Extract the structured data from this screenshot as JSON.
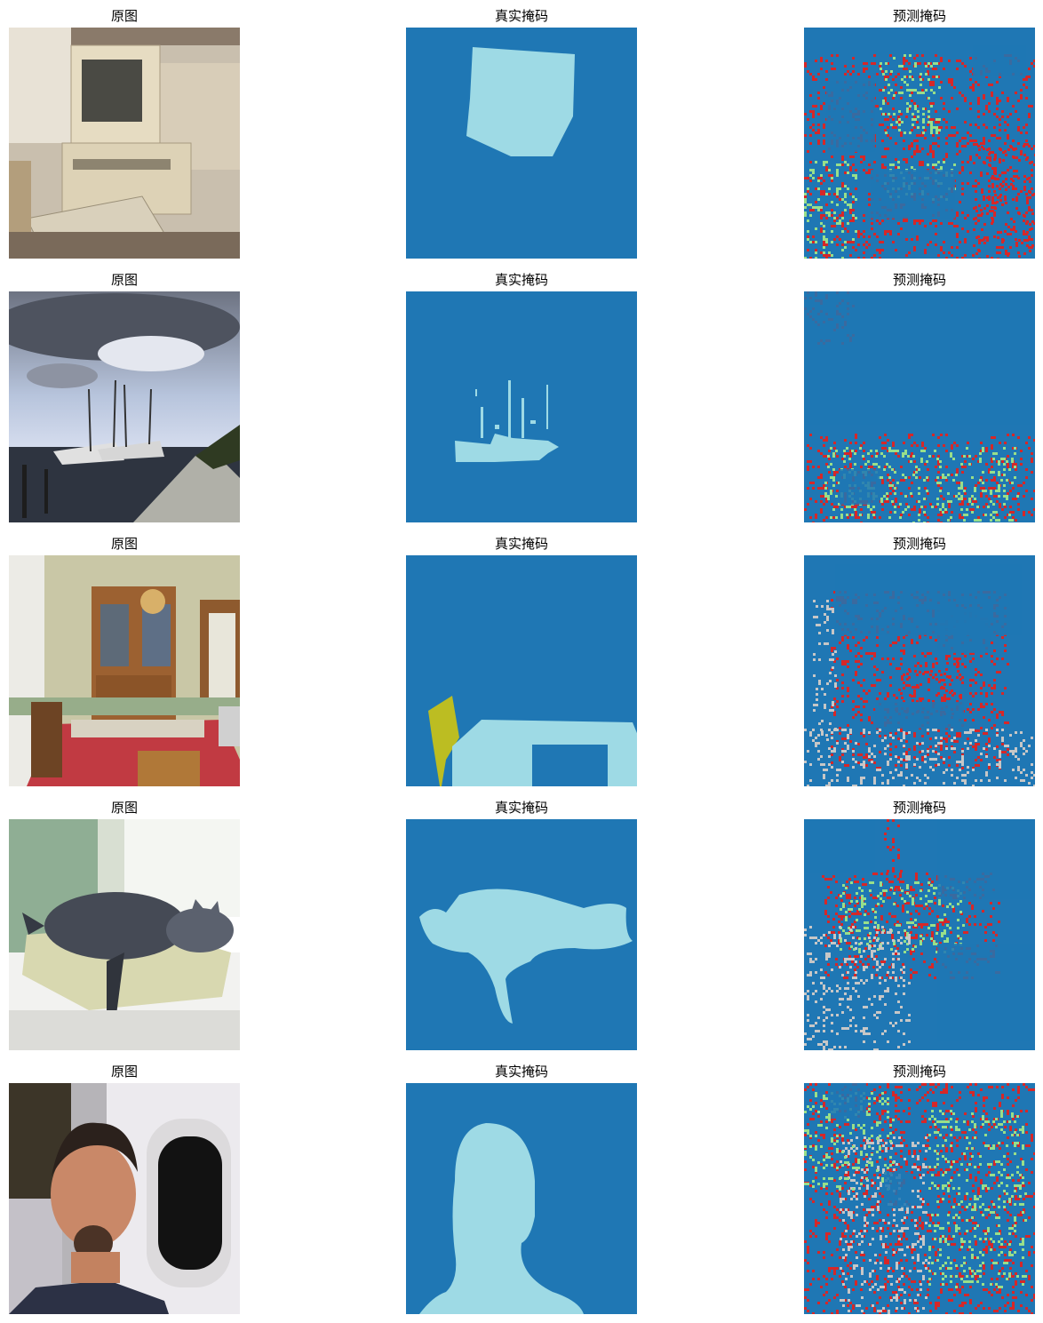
{
  "columns": [
    "原图",
    "真实掩码",
    "预测掩码"
  ],
  "colors": {
    "background_class": "#1f77b4",
    "object_class": "#9edae5",
    "olive_class": "#bcbd22",
    "pred_red": "#d62728",
    "pred_green": "#98df8a",
    "pred_gray": "#c7c7c7"
  },
  "rows": [
    {
      "image_subject": "old personal computer with monitor and keyboard"
    },
    {
      "image_subject": "fishing boats at a dock under cloudy sky"
    },
    {
      "image_subject": "dining room with china cabinet, chandelier and red tablecloth"
    },
    {
      "image_subject": "gray cat sleeping on a cushion by a window"
    },
    {
      "image_subject": "man taking selfie next to an airplane window"
    }
  ]
}
